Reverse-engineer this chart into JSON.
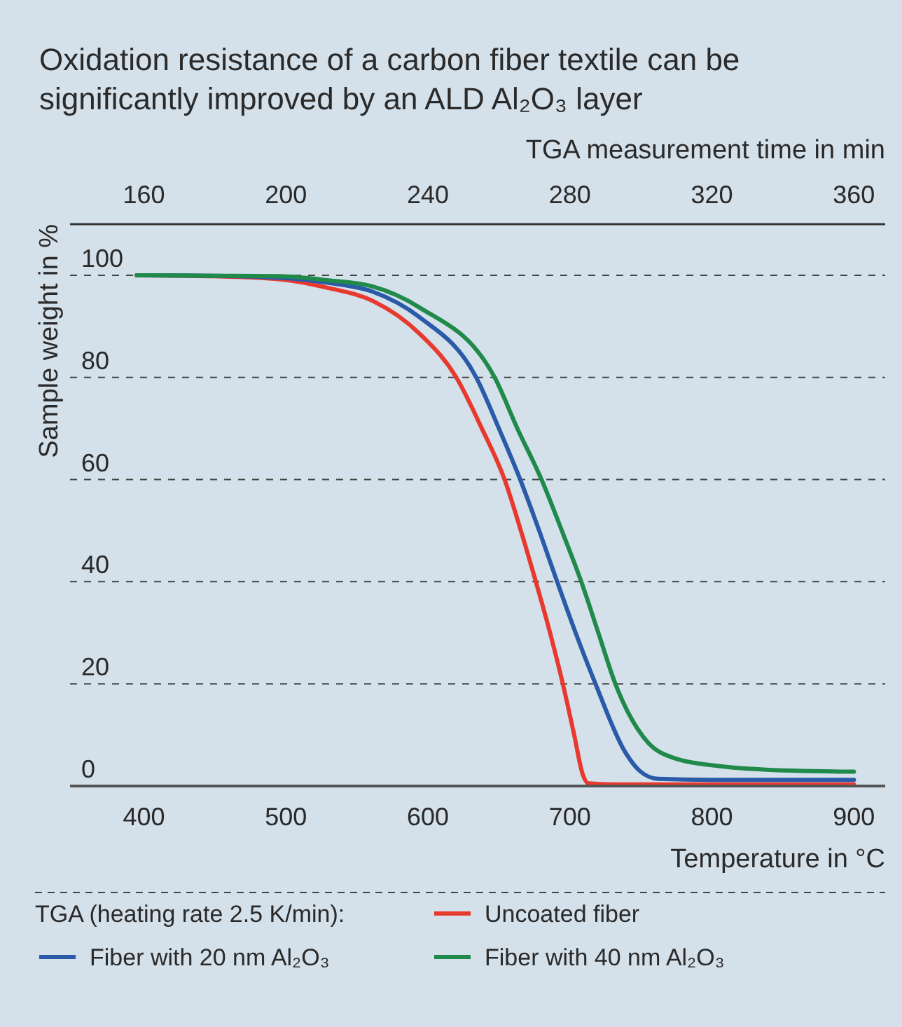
{
  "chart_data": {
    "type": "line",
    "title": "Oxidation resistance of a carbon fiber textile can be significantly improved by an ALD Al₂O₃ layer",
    "xlabel": "Temperature in °C",
    "x2label": "TGA measurement time in min",
    "ylabel": "Sample weight in %",
    "legend_title": "TGA (heating rate 2.5 K/min):",
    "xlim": [
      348,
      922
    ],
    "xticks": [
      400,
      500,
      600,
      700,
      800,
      900
    ],
    "x2lim": [
      139.2,
      368.8
    ],
    "x2ticks": [
      160,
      200,
      240,
      280,
      320,
      360
    ],
    "ylim": [
      0,
      110
    ],
    "yticks": [
      0,
      20,
      40,
      60,
      80,
      100
    ],
    "grid": "y",
    "legend": "bottom",
    "line_style": "solid",
    "marker": "none",
    "series": [
      {
        "name": "Uncoated fiber",
        "color": "#e8392f",
        "x": [
          395,
          450,
          496,
          530,
          561,
          594,
          620,
          638,
          654,
          666,
          676,
          686,
          695,
          703,
          709,
          713,
          730,
          800,
          900
        ],
        "values": [
          100,
          99.8,
          99.2,
          97.5,
          95,
          88.6,
          80,
          70,
          60,
          49.5,
          40,
          30,
          20,
          10,
          2.3,
          0.5,
          0.3,
          0.3,
          0.3
        ]
      },
      {
        "name": "Fiber with 20 nm Al₂O₃",
        "color": "#2a5aa8",
        "x": [
          395,
          450,
          496,
          530,
          561,
          594,
          634,
          650,
          665,
          679,
          691,
          704,
          718,
          739,
          749,
          762,
          800,
          900
        ],
        "values": [
          100,
          99.9,
          99.5,
          98.5,
          96.8,
          91.8,
          80,
          70,
          60,
          49.5,
          40,
          30,
          20,
          6.6,
          3,
          1.4,
          1.2,
          1.2
        ]
      },
      {
        "name": "Fiber with 40 nm Al₂O₃",
        "color": "#1f8a4a",
        "x": [
          395,
          450,
          496,
          530,
          561,
          594,
          647,
          663,
          680,
          695,
          708,
          720,
          732,
          755,
          772,
          805,
          838,
          900
        ],
        "values": [
          100,
          99.9,
          99.8,
          99,
          97.8,
          93.7,
          80,
          70,
          60,
          49.5,
          40,
          30,
          20,
          8.5,
          5.6,
          3.9,
          3.2,
          2.8
        ]
      }
    ]
  }
}
